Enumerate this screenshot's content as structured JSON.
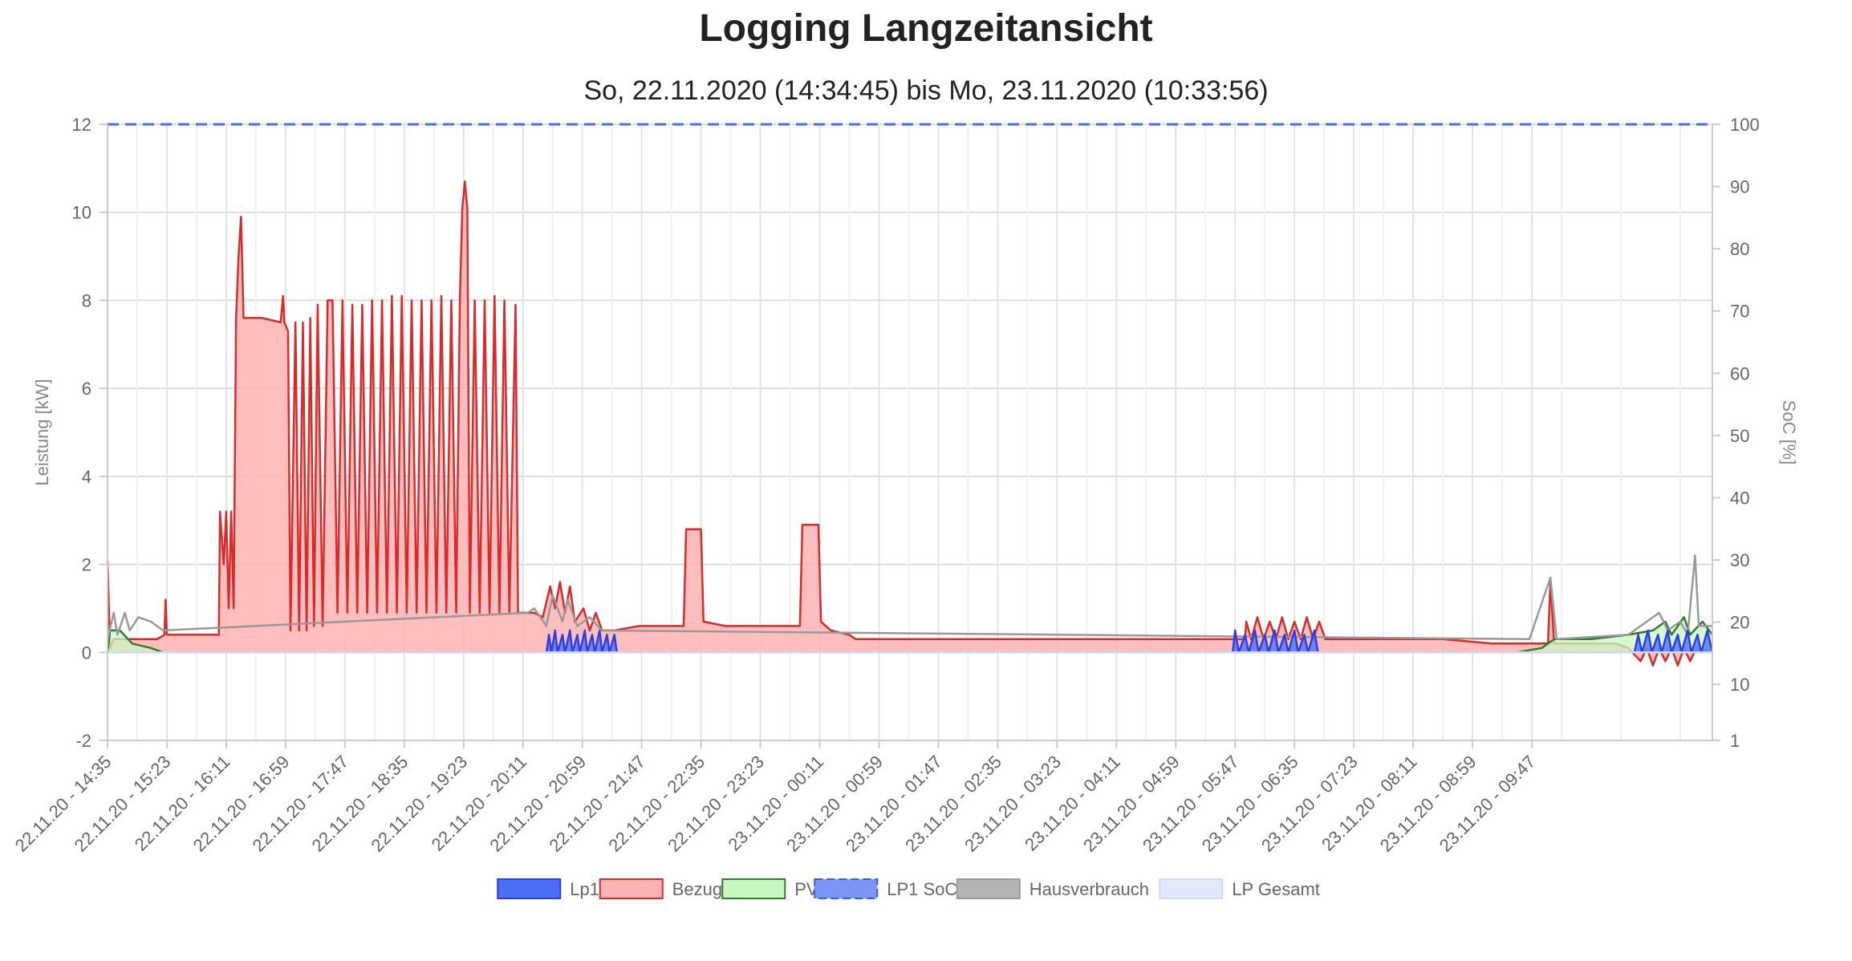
{
  "title": "Logging Langzeitansicht",
  "subtitle": "So, 22.11.2020 (14:34:45) bis Mo, 23.11.2020 (10:33:56)",
  "chart_data": {
    "type": "area",
    "title": "Logging Langzeitansicht",
    "subtitle": "So, 22.11.2020 (14:34:45) bis Mo, 23.11.2020 (10:33:56)",
    "ylabel": "Leistung [kW]",
    "y2label": "SoC [%]",
    "ylim": [
      -2,
      12
    ],
    "y2lim": [
      1,
      100
    ],
    "y_ticks": [
      "12",
      "10",
      "8",
      "6",
      "4",
      "2",
      "0",
      "-2"
    ],
    "y2_ticks": [
      "100",
      "90",
      "80",
      "70",
      "60",
      "50",
      "40",
      "30",
      "20",
      "10",
      "1"
    ],
    "x_ticks": [
      "22.11.20 - 14:35",
      "22.11.20 - 15:23",
      "22.11.20 - 16:11",
      "22.11.20 - 16:59",
      "22.11.20 - 17:47",
      "22.11.20 - 18:35",
      "22.11.20 - 19:23",
      "22.11.20 - 20:11",
      "22.11.20 - 20:59",
      "22.11.20 - 21:47",
      "22.11.20 - 22:35",
      "22.11.20 - 23:23",
      "23.11.20 - 00:11",
      "23.11.20 - 00:59",
      "23.11.20 - 01:47",
      "23.11.20 - 02:35",
      "23.11.20 - 03:23",
      "23.11.20 - 04:11",
      "23.11.20 - 04:59",
      "23.11.20 - 05:47",
      "23.11.20 - 06:35",
      "23.11.20 - 07:23",
      "23.11.20 - 08:11",
      "23.11.20 - 08:59",
      "23.11.20 - 09:47"
    ],
    "x_unit": "minutes after 22.11.20 - 14:35",
    "grid": true,
    "legend_position": "bottom",
    "series": [
      {
        "name": "Bezug",
        "axis": "left",
        "color": "#d62c2c",
        "fill": "#ffb3b3",
        "points": [
          [
            0,
            2.1
          ],
          [
            2,
            0.1
          ],
          [
            5,
            0.3
          ],
          [
            20,
            0.3
          ],
          [
            40,
            0.3
          ],
          [
            46,
            0.4
          ],
          [
            47,
            1.2
          ],
          [
            48,
            0.4
          ],
          [
            70,
            0.4
          ],
          [
            90,
            0.4
          ],
          [
            91,
            3.2
          ],
          [
            94,
            2.0
          ],
          [
            96,
            3.2
          ],
          [
            98,
            1.0
          ],
          [
            100,
            3.2
          ],
          [
            102,
            1.0
          ],
          [
            104,
            7.6
          ],
          [
            106,
            9.0
          ],
          [
            108,
            9.9
          ],
          [
            110,
            7.6
          ],
          [
            125,
            7.6
          ],
          [
            140,
            7.5
          ],
          [
            142,
            8.1
          ],
          [
            143,
            7.5
          ],
          [
            146,
            7.3
          ],
          [
            148,
            0.5
          ],
          [
            152,
            7.5
          ],
          [
            155,
            0.5
          ],
          [
            158,
            7.5
          ],
          [
            161,
            0.5
          ],
          [
            164,
            7.6
          ],
          [
            167,
            0.6
          ],
          [
            170,
            7.9
          ],
          [
            174,
            0.6
          ],
          [
            178,
            8.0
          ],
          [
            182,
            8.0
          ],
          [
            186,
            0.9
          ],
          [
            190,
            8.0
          ],
          [
            194,
            0.9
          ],
          [
            198,
            7.9
          ],
          [
            202,
            0.9
          ],
          [
            206,
            7.9
          ],
          [
            210,
            0.9
          ],
          [
            214,
            8.0
          ],
          [
            218,
            0.9
          ],
          [
            222,
            8.0
          ],
          [
            226,
            0.9
          ],
          [
            230,
            8.1
          ],
          [
            234,
            0.9
          ],
          [
            238,
            8.1
          ],
          [
            242,
            0.9
          ],
          [
            246,
            8.0
          ],
          [
            250,
            0.9
          ],
          [
            254,
            8.0
          ],
          [
            258,
            0.9
          ],
          [
            262,
            8.0
          ],
          [
            266,
            0.9
          ],
          [
            270,
            8.1
          ],
          [
            274,
            0.9
          ],
          [
            278,
            8.0
          ],
          [
            282,
            0.9
          ],
          [
            285,
            8.0
          ],
          [
            287,
            10.1
          ],
          [
            289,
            10.7
          ],
          [
            291,
            10.1
          ],
          [
            293,
            0.9
          ],
          [
            297,
            8.0
          ],
          [
            301,
            0.9
          ],
          [
            305,
            8.0
          ],
          [
            309,
            0.9
          ],
          [
            313,
            8.1
          ],
          [
            317,
            0.9
          ],
          [
            321,
            8.0
          ],
          [
            325,
            0.9
          ],
          [
            330,
            7.9
          ],
          [
            332,
            0.9
          ],
          [
            345,
            0.9
          ],
          [
            352,
            0.8
          ],
          [
            358,
            1.5
          ],
          [
            362,
            1.0
          ],
          [
            366,
            1.6
          ],
          [
            370,
            0.9
          ],
          [
            374,
            1.5
          ],
          [
            378,
            0.7
          ],
          [
            385,
            1.0
          ],
          [
            390,
            0.5
          ],
          [
            395,
            0.9
          ],
          [
            400,
            0.5
          ],
          [
            410,
            0.5
          ],
          [
            430,
            0.6
          ],
          [
            450,
            0.6
          ],
          [
            466,
            0.6
          ],
          [
            468,
            2.8
          ],
          [
            480,
            2.8
          ],
          [
            482,
            0.7
          ],
          [
            500,
            0.6
          ],
          [
            520,
            0.6
          ],
          [
            550,
            0.6
          ],
          [
            560,
            0.6
          ],
          [
            562,
            2.9
          ],
          [
            575,
            2.9
          ],
          [
            577,
            0.7
          ],
          [
            585,
            0.5
          ],
          [
            600,
            0.4
          ],
          [
            605,
            0.3
          ],
          [
            640,
            0.3
          ],
          [
            660,
            0.3
          ],
          [
            700,
            0.3
          ],
          [
            730,
            0.3
          ],
          [
            760,
            0.3
          ],
          [
            800,
            0.3
          ],
          [
            840,
            0.3
          ],
          [
            880,
            0.3
          ],
          [
            920,
            0.3
          ],
          [
            921,
            0.7
          ],
          [
            925,
            0.3
          ],
          [
            930,
            0.8
          ],
          [
            935,
            0.3
          ],
          [
            940,
            0.7
          ],
          [
            945,
            0.3
          ],
          [
            950,
            0.8
          ],
          [
            955,
            0.3
          ],
          [
            960,
            0.7
          ],
          [
            965,
            0.3
          ],
          [
            970,
            0.8
          ],
          [
            975,
            0.3
          ],
          [
            980,
            0.7
          ],
          [
            985,
            0.3
          ],
          [
            1000,
            0.3
          ],
          [
            1040,
            0.3
          ],
          [
            1080,
            0.3
          ],
          [
            1120,
            0.2
          ],
          [
            1140,
            0.2
          ],
          [
            1160,
            0.2
          ],
          [
            1165,
            0.2
          ],
          [
            1167,
            1.6
          ],
          [
            1170,
            0.2
          ],
          [
            1180,
            0.2
          ],
          [
            1200,
            0.2
          ],
          [
            1220,
            0.2
          ],
          [
            1230,
            0.1
          ],
          [
            1240,
            -0.2
          ],
          [
            1245,
            0.1
          ],
          [
            1250,
            -0.3
          ],
          [
            1255,
            0.1
          ],
          [
            1260,
            -0.2
          ],
          [
            1265,
            0.1
          ],
          [
            1270,
            -0.3
          ],
          [
            1275,
            0.1
          ],
          [
            1280,
            -0.2
          ],
          [
            1285,
            0.1
          ],
          [
            1298,
            0.0
          ]
        ]
      },
      {
        "name": "PV",
        "axis": "left",
        "color": "#2e7d2e",
        "fill": "#c8f7c0",
        "points": [
          [
            0,
            0.0
          ],
          [
            2,
            0.5
          ],
          [
            10,
            0.5
          ],
          [
            20,
            0.2
          ],
          [
            35,
            0.1
          ],
          [
            45,
            0.0
          ],
          [
            1140,
            0.0
          ],
          [
            1160,
            0.1
          ],
          [
            1170,
            0.3
          ],
          [
            1200,
            0.3
          ],
          [
            1230,
            0.4
          ],
          [
            1250,
            0.5
          ],
          [
            1260,
            0.7
          ],
          [
            1265,
            0.4
          ],
          [
            1275,
            0.8
          ],
          [
            1280,
            0.4
          ],
          [
            1290,
            0.7
          ],
          [
            1298,
            0.4
          ]
        ]
      },
      {
        "name": "Lp1",
        "axis": "left",
        "color": "#2c3fe0",
        "fill": "#4a6cf7",
        "points": [
          [
            0,
            0.0
          ],
          [
            355,
            0.0
          ],
          [
            357,
            0.4
          ],
          [
            359,
            0.0
          ],
          [
            362,
            0.5
          ],
          [
            364,
            0.0
          ],
          [
            368,
            0.4
          ],
          [
            370,
            0.0
          ],
          [
            374,
            0.5
          ],
          [
            376,
            0.0
          ],
          [
            380,
            0.4
          ],
          [
            382,
            0.0
          ],
          [
            386,
            0.5
          ],
          [
            388,
            0.0
          ],
          [
            392,
            0.4
          ],
          [
            394,
            0.0
          ],
          [
            398,
            0.5
          ],
          [
            400,
            0.0
          ],
          [
            404,
            0.4
          ],
          [
            406,
            0.0
          ],
          [
            410,
            0.4
          ],
          [
            412,
            0.0
          ],
          [
            910,
            0.0
          ],
          [
            912,
            0.5
          ],
          [
            915,
            0.0
          ],
          [
            920,
            0.4
          ],
          [
            923,
            0.0
          ],
          [
            928,
            0.5
          ],
          [
            931,
            0.0
          ],
          [
            936,
            0.4
          ],
          [
            939,
            0.0
          ],
          [
            944,
            0.5
          ],
          [
            947,
            0.0
          ],
          [
            952,
            0.4
          ],
          [
            955,
            0.0
          ],
          [
            960,
            0.5
          ],
          [
            963,
            0.0
          ],
          [
            968,
            0.4
          ],
          [
            971,
            0.0
          ],
          [
            976,
            0.5
          ],
          [
            979,
            0.0
          ],
          [
            1235,
            0.0
          ],
          [
            1238,
            0.4
          ],
          [
            1241,
            0.0
          ],
          [
            1246,
            0.5
          ],
          [
            1249,
            0.0
          ],
          [
            1254,
            0.4
          ],
          [
            1257,
            0.0
          ],
          [
            1262,
            0.5
          ],
          [
            1265,
            0.0
          ],
          [
            1270,
            0.4
          ],
          [
            1273,
            0.0
          ],
          [
            1278,
            0.5
          ],
          [
            1281,
            0.0
          ],
          [
            1286,
            0.4
          ],
          [
            1289,
            0.0
          ],
          [
            1294,
            0.5
          ],
          [
            1298,
            0.0
          ]
        ]
      },
      {
        "name": "LP1 SoC",
        "axis": "right",
        "color": "#4a6cf7",
        "dashed": true,
        "points": [
          [
            0,
            100
          ],
          [
            1298,
            100
          ]
        ]
      },
      {
        "name": "Hausverbrauch",
        "axis": "left",
        "color": "#999999",
        "fill": "none",
        "points": [
          [
            0,
            0.3
          ],
          [
            5,
            0.9
          ],
          [
            8,
            0.4
          ],
          [
            14,
            0.9
          ],
          [
            18,
            0.5
          ],
          [
            25,
            0.8
          ],
          [
            35,
            0.7
          ],
          [
            45,
            0.5
          ],
          [
            340,
            0.9
          ],
          [
            345,
            1.0
          ],
          [
            355,
            0.6
          ],
          [
            360,
            1.3
          ],
          [
            368,
            0.7
          ],
          [
            372,
            1.2
          ],
          [
            380,
            0.6
          ],
          [
            390,
            0.8
          ],
          [
            400,
            0.5
          ],
          [
            1150,
            0.3
          ],
          [
            1167,
            1.7
          ],
          [
            1172,
            0.3
          ],
          [
            1230,
            0.4
          ],
          [
            1255,
            0.9
          ],
          [
            1262,
            0.5
          ],
          [
            1272,
            0.7
          ],
          [
            1278,
            0.4
          ],
          [
            1284,
            2.2
          ],
          [
            1287,
            0.6
          ],
          [
            1298,
            0.6
          ]
        ]
      },
      {
        "name": "LP Gesamt",
        "axis": "left",
        "color": "#cfd8f7",
        "fill": "#e3e8fb",
        "points": [
          [
            0,
            0.0
          ],
          [
            1298,
            0.0
          ]
        ]
      }
    ],
    "legend": [
      {
        "name": "Lp1",
        "fill": "#4a6cf7",
        "stroke": "#2c3fe0",
        "dashed": false
      },
      {
        "name": "Bezug",
        "fill": "#ffb3b3",
        "stroke": "#d62c2c",
        "dashed": false
      },
      {
        "name": "PV",
        "fill": "#c8f7c0",
        "stroke": "#2e7d2e",
        "dashed": false
      },
      {
        "name": "LP1 SoC",
        "fill": "#7d95f5",
        "stroke": "#3a5ce8",
        "dashed": true
      },
      {
        "name": "Hausverbrauch",
        "fill": "#b3b3b3",
        "stroke": "#999999",
        "dashed": false
      },
      {
        "name": "LP Gesamt",
        "fill": "#e3e8fb",
        "stroke": "#cfd8f7",
        "dashed": false
      }
    ]
  }
}
